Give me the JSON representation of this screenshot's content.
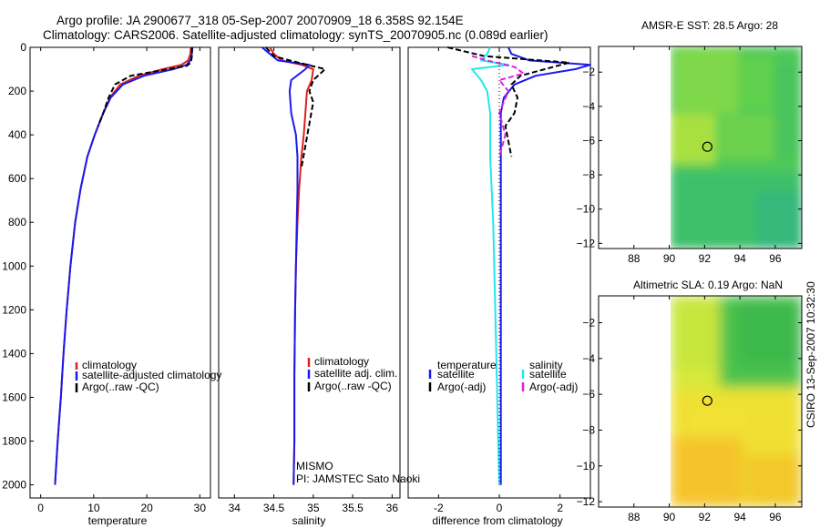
{
  "header": {
    "line1": "Argo profile: JA 2900677_318 05-Sep-2007 20070909_18 6.358S 92.154E",
    "line2": "Climatology: CARS2006. Satellite-adjusted climatology: synTS_20070905.nc (0.089d earlier)"
  },
  "side_stamp": "CSIRO 13-Sep-2007 10:32:30",
  "colors": {
    "red": "#e02020",
    "blue": "#1a1aee",
    "black": "#000000",
    "cyan": "#22e6f0",
    "magenta": "#e020e0"
  },
  "chart_data": [
    {
      "type": "line",
      "id": "temperature",
      "xlabel": "temperature",
      "ylabel": "",
      "xlim": [
        -2,
        32
      ],
      "ylim": [
        2060,
        0
      ],
      "xticks": [
        0,
        10,
        20,
        30
      ],
      "yticks": [
        0,
        200,
        400,
        600,
        800,
        1000,
        1200,
        1400,
        1600,
        1800,
        2000
      ],
      "legend": {
        "location": "lower-right",
        "entries": [
          "climatology",
          "satellite-adjusted climatology",
          "Argo(..raw -QC)"
        ]
      },
      "series": [
        {
          "name": "climatology",
          "color": "red",
          "style": "solid",
          "x": [
            28.3,
            28.2,
            27.8,
            26.5,
            23.0,
            18.5,
            15.0,
            13.0,
            11.8,
            10.2,
            8.8,
            7.5,
            6.5,
            5.6,
            4.9,
            4.3,
            3.8,
            3.2,
            2.7
          ],
          "y": [
            0,
            30,
            60,
            80,
            100,
            130,
            170,
            230,
            300,
            400,
            500,
            650,
            800,
            1000,
            1200,
            1400,
            1600,
            1800,
            2000
          ]
        },
        {
          "name": "satellite-adjusted climatology",
          "color": "blue",
          "style": "solid",
          "x": [
            28.6,
            28.5,
            28.2,
            27.5,
            25.0,
            19.5,
            15.5,
            13.2,
            11.8,
            10.2,
            8.8,
            7.5,
            6.5,
            5.6,
            4.9,
            4.3,
            3.8,
            3.2,
            2.7
          ],
          "y": [
            0,
            30,
            60,
            80,
            100,
            130,
            170,
            230,
            300,
            400,
            500,
            650,
            800,
            1000,
            1200,
            1400,
            1600,
            1800,
            2000
          ]
        },
        {
          "name": "Argo(..raw -QC)",
          "color": "black",
          "style": "dashed",
          "x": [
            28.5,
            28.5,
            28.3,
            27.5,
            24.0,
            17.0,
            14.0,
            12.8,
            11.8,
            10.8
          ],
          "y": [
            0,
            40,
            70,
            85,
            100,
            130,
            170,
            230,
            300,
            360
          ]
        }
      ]
    },
    {
      "type": "line",
      "id": "salinity",
      "xlabel": "salinity",
      "ylabel": "",
      "xlim": [
        33.8,
        36.1
      ],
      "ylim": [
        2060,
        0
      ],
      "xticks": [
        34,
        34.5,
        35,
        35.5,
        36
      ],
      "yticks": [],
      "legend": {
        "location": "lower-right",
        "entries": [
          "climatology",
          "satellite adj. clim.",
          "Argo(..raw -QC)"
        ]
      },
      "annotation": [
        "MISMO",
        "PI: JAMSTEC Sato Naoki"
      ],
      "series": [
        {
          "name": "climatology",
          "color": "red",
          "style": "solid",
          "x": [
            34.45,
            34.5,
            34.6,
            34.85,
            35.0,
            34.98,
            34.92,
            34.9,
            34.88,
            34.85,
            34.82,
            34.8,
            34.78,
            34.77,
            34.76,
            34.76,
            34.75
          ],
          "y": [
            0,
            30,
            60,
            80,
            100,
            150,
            200,
            300,
            400,
            500,
            650,
            800,
            1000,
            1200,
            1500,
            1800,
            2000
          ]
        },
        {
          "name": "satellite adj. clim.",
          "color": "blue",
          "style": "solid",
          "x": [
            34.35,
            34.45,
            34.55,
            34.95,
            34.9,
            34.72,
            34.7,
            34.72,
            34.78,
            34.8,
            34.8,
            34.79,
            34.78,
            34.77,
            34.76,
            34.76,
            34.75
          ],
          "y": [
            0,
            30,
            60,
            80,
            100,
            150,
            200,
            300,
            400,
            500,
            650,
            800,
            1000,
            1200,
            1500,
            1800,
            2000
          ]
        },
        {
          "name": "Argo(..raw -QC)",
          "color": "black",
          "style": "dashed",
          "x": [
            34.4,
            34.5,
            34.7,
            35.15,
            35.0,
            34.95,
            35.0,
            34.95,
            34.9,
            34.85
          ],
          "y": [
            0,
            40,
            60,
            100,
            150,
            200,
            250,
            350,
            450,
            550
          ]
        }
      ]
    },
    {
      "type": "line",
      "id": "difference",
      "xlabel": "difference from climatology",
      "ylabel": "",
      "xlim": [
        -3,
        3
      ],
      "ylim": [
        2060,
        0
      ],
      "xticks": [
        -2,
        0,
        2
      ],
      "yticks": [],
      "legend": {
        "location": "lower-right",
        "entries": [
          "temperature",
          "satellite",
          "Argo(-adj)",
          "salinity",
          "satellite",
          "Argo(-adj)"
        ]
      },
      "series": [
        {
          "name": "temperature satellite",
          "color": "blue",
          "style": "solid",
          "x": [
            0.3,
            0.4,
            1.0,
            3.0,
            2.5,
            1.2,
            0.5,
            0.15,
            0.05,
            0.05,
            0.05,
            0.05,
            0.05,
            0.05
          ],
          "y": [
            0,
            30,
            60,
            80,
            100,
            130,
            170,
            230,
            300,
            500,
            800,
            1200,
            1600,
            2000
          ]
        },
        {
          "name": "temperature Argo(-adj)",
          "color": "black",
          "style": "dashed",
          "x": [
            -1.7,
            -0.5,
            2.3,
            1.5,
            0.7,
            0.4,
            0.6,
            0.5,
            0.2,
            0.4
          ],
          "y": [
            0,
            40,
            70,
            100,
            130,
            170,
            230,
            300,
            360,
            500
          ]
        },
        {
          "name": "salinity satellite",
          "color": "cyan",
          "style": "solid",
          "x": [
            -0.3,
            -0.4,
            -0.6,
            0.3,
            -0.9,
            -0.6,
            -0.4,
            -0.3,
            -0.3,
            -0.2,
            -0.15,
            -0.1,
            -0.05,
            0.0
          ],
          "y": [
            0,
            30,
            60,
            80,
            100,
            150,
            200,
            300,
            500,
            800,
            1100,
            1400,
            1700,
            2000
          ]
        },
        {
          "name": "salinity Argo(-adj)",
          "color": "magenta",
          "style": "dashed",
          "x": [
            -0.9,
            -0.4,
            0.5,
            0.8,
            0.0,
            0.3,
            0.0,
            0.2,
            0.0
          ],
          "y": [
            40,
            60,
            90,
            120,
            150,
            200,
            300,
            400,
            500
          ]
        },
        {
          "name": "zero reference",
          "color": "black",
          "style": "dotted",
          "x": [
            0,
            0
          ],
          "y": [
            0,
            2000
          ]
        }
      ]
    },
    {
      "type": "heatmap",
      "id": "sst_map",
      "title": "AMSR-E SST: 28.5 Argo: 28",
      "xlim": [
        86,
        97.5
      ],
      "ylim": [
        -12.3,
        -0.5
      ],
      "xticks": [
        88,
        90,
        92,
        94,
        96
      ],
      "yticks": [
        -2,
        -4,
        -6,
        -8,
        -10,
        -12
      ],
      "data_xmin": 90,
      "marker": {
        "x": 92.154,
        "y": -6.358
      }
    },
    {
      "type": "heatmap",
      "id": "sla_map",
      "title": "Altimetric SLA: 0.19 Argo: NaN",
      "xlim": [
        86,
        97.5
      ],
      "ylim": [
        -12.3,
        -0.5
      ],
      "xticks": [
        88,
        90,
        92,
        94,
        96
      ],
      "yticks": [
        -2,
        -4,
        -6,
        -8,
        -10,
        -12
      ],
      "data_xmin": 90,
      "marker": {
        "x": 92.154,
        "y": -6.358
      }
    }
  ]
}
